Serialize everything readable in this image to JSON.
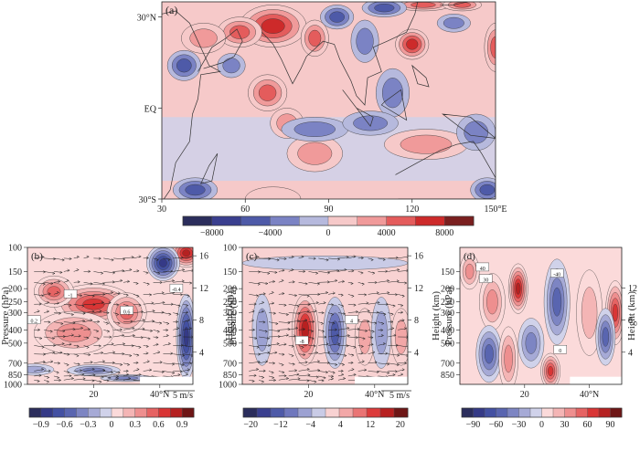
{
  "figure": {
    "chart_data": [
      {
        "id": "a",
        "type": "heatmap",
        "panel_label": "(a)",
        "xlim": [
          30,
          150
        ],
        "ylim": [
          -30,
          35
        ],
        "x_ticks": [
          30,
          60,
          90,
          120
        ],
        "x_tick_labels": [
          "30",
          "60",
          "90",
          "120"
        ],
        "x_end_label": "150°E",
        "y_ticks": [
          30,
          0,
          -30
        ],
        "y_tick_labels": [
          "30°N",
          "EQ",
          "30°S"
        ],
        "colorbar": {
          "bounds": [
            -10000,
            -8000,
            -6000,
            -4000,
            -2000,
            0,
            2000,
            4000,
            6000,
            8000,
            10000
          ],
          "tick_values": [
            -8000,
            -4000,
            0,
            4000,
            8000
          ],
          "tick_labels": [
            "−8000",
            "−4000",
            "0",
            "4000",
            "8000"
          ]
        },
        "features": [
          {
            "lon": 70,
            "lat": 27,
            "value": 7000,
            "rlon": 12,
            "rlat": 7
          },
          {
            "lon": 85,
            "lat": 23,
            "value": 6000,
            "rlon": 5,
            "rlat": 6
          },
          {
            "lon": 58,
            "lat": 25,
            "value": 5000,
            "rlon": 8,
            "rlat": 5
          },
          {
            "lon": 120,
            "lat": 21,
            "value": 6500,
            "rlon": 6,
            "rlat": 5
          },
          {
            "lon": 124,
            "lat": 34,
            "value": 5500,
            "rlon": 10,
            "rlat": 2
          },
          {
            "lon": 138,
            "lat": 34,
            "value": 6000,
            "rlon": 7,
            "rlat": 2
          },
          {
            "lon": 150,
            "lat": 20,
            "value": 5000,
            "rlon": 4,
            "rlat": 8
          },
          {
            "lon": 68,
            "lat": 5,
            "value": 4500,
            "rlon": 7,
            "rlat": 6
          },
          {
            "lon": 75,
            "lat": -5,
            "value": 3500,
            "rlon": 6,
            "rlat": 5
          },
          {
            "lon": 85,
            "lat": -15,
            "value": 3000,
            "rlon": 10,
            "rlat": 6
          },
          {
            "lon": 45,
            "lat": 23,
            "value": 2500,
            "rlon": 8,
            "rlat": 5
          },
          {
            "lon": 125,
            "lat": -12,
            "value": 2500,
            "rlon": 15,
            "rlat": 5
          },
          {
            "lon": 70,
            "lat": -30,
            "value": 2000,
            "rlon": 10,
            "rlat": 4
          },
          {
            "lon": 110,
            "lat": 33,
            "value": -4500,
            "rlon": 8,
            "rlat": 3
          },
          {
            "lon": 93,
            "lat": 30,
            "value": -5000,
            "rlon": 6,
            "rlat": 4
          },
          {
            "lon": 103,
            "lat": 22,
            "value": -3500,
            "rlon": 5,
            "rlat": 7
          },
          {
            "lon": 38,
            "lat": 14,
            "value": -5500,
            "rlon": 6,
            "rlat": 5
          },
          {
            "lon": 55,
            "lat": 14,
            "value": -3000,
            "rlon": 5,
            "rlat": 4
          },
          {
            "lon": 113,
            "lat": 5,
            "value": -4000,
            "rlon": 6,
            "rlat": 8
          },
          {
            "lon": 85,
            "lat": -7,
            "value": -3500,
            "rlon": 12,
            "rlat": 4
          },
          {
            "lon": 105,
            "lat": -5,
            "value": -3500,
            "rlon": 10,
            "rlat": 4
          },
          {
            "lon": 143,
            "lat": -8,
            "value": -3000,
            "rlon": 7,
            "rlat": 6
          },
          {
            "lon": 42,
            "lat": -27,
            "value": -5000,
            "rlon": 8,
            "rlat": 4
          },
          {
            "lon": 147,
            "lat": -27,
            "value": -4500,
            "rlon": 6,
            "rlat": 4
          },
          {
            "lon": 135,
            "lat": 28,
            "value": -3000,
            "rlon": 6,
            "rlat": 3
          }
        ]
      },
      {
        "id": "b",
        "type": "heatmap",
        "panel_label": "(b)",
        "x_unit_lat": true,
        "xlim": [
          0,
          50
        ],
        "x_ticks": [
          20,
          40
        ],
        "x_tick_labels": [
          "20",
          "40°N"
        ],
        "pressure_ticks": [
          100,
          150,
          200,
          250,
          300,
          400,
          500,
          700,
          850,
          1000
        ],
        "pressure_labels": [
          "100",
          "150",
          "200",
          "250",
          "300",
          "400",
          "500",
          "700",
          "850",
          "1000"
        ],
        "y_label": "Pressure (hPa)",
        "right_axis_label": "Height (km)",
        "height_ticks": [
          16,
          12,
          8,
          4
        ],
        "height_tick_labels": [
          "16",
          "12",
          "8",
          "4"
        ],
        "vector_key": "5 m/s",
        "colorbar": {
          "bounds": [
            -1.05,
            -0.9,
            -0.75,
            -0.6,
            -0.45,
            -0.3,
            -0.15,
            0,
            0.15,
            0.3,
            0.45,
            0.6,
            0.75,
            0.9,
            1.05
          ],
          "tick_values": [
            -0.9,
            -0.6,
            -0.3,
            0,
            0.3,
            0.6,
            0.9
          ],
          "tick_labels": [
            "−0.9",
            "−0.6",
            "−0.3",
            "0",
            "0.3",
            "0.6",
            "0.9"
          ]
        },
        "features": [
          {
            "lat": 20,
            "p": 260,
            "value": 0.7,
            "rlat": 12,
            "rp": 0.28
          },
          {
            "lat": 30,
            "p": 300,
            "value": 0.6,
            "rlat": 6,
            "rp": 0.28
          },
          {
            "lat": 8,
            "p": 210,
            "value": 0.55,
            "rlat": 6,
            "rp": 0.22
          },
          {
            "lat": 14,
            "p": 420,
            "value": 0.35,
            "rlat": 12,
            "rp": 0.3
          },
          {
            "lat": 48,
            "p": 110,
            "value": 0.8,
            "rlat": 5,
            "rp": 0.2
          },
          {
            "lat": 41,
            "p": 130,
            "value": -0.8,
            "rlat": 5,
            "rp": 0.25
          },
          {
            "lat": 48,
            "p": 450,
            "value": -0.9,
            "rlat": 3,
            "rp": 0.6
          },
          {
            "lat": 20,
            "p": 790,
            "value": -0.45,
            "rlat": 8,
            "rp": 0.08
          },
          {
            "lat": 2,
            "p": 780,
            "value": -0.3,
            "rlat": 6,
            "rp": 0.08
          },
          {
            "lat": 30,
            "p": 900,
            "value": -0.35,
            "rlat": 8,
            "rp": 0.05
          }
        ]
      },
      {
        "id": "c",
        "type": "heatmap",
        "panel_label": "(c)",
        "xlim": [
          0,
          50
        ],
        "x_ticks": [
          20,
          40
        ],
        "x_tick_labels": [
          "20",
          "40°N"
        ],
        "pressure_ticks": [
          100,
          150,
          200,
          250,
          300,
          400,
          500,
          700,
          850,
          1000
        ],
        "pressure_labels": [
          "100",
          "150",
          "200",
          "250",
          "300",
          "400",
          "500",
          "700",
          "850",
          "1000"
        ],
        "y_label": "Pressure (hPa)",
        "right_axis_label": "Height (km)",
        "height_ticks": [
          16,
          12,
          8,
          4
        ],
        "height_tick_labels": [
          "16",
          "12",
          "8",
          "4"
        ],
        "vector_key": "5 m/s",
        "colorbar": {
          "bounds": [
            -22,
            -20,
            -16,
            -12,
            -8,
            -4,
            0,
            4,
            8,
            12,
            16,
            20,
            22
          ],
          "tick_values": [
            -20,
            -12,
            -4,
            4,
            12,
            20
          ],
          "tick_labels": [
            "−20",
            "−12",
            "−4",
            "4",
            "12",
            "20"
          ]
        },
        "features": [
          {
            "lat": 19,
            "p": 400,
            "value": 18,
            "rlat": 4,
            "rp": 0.5
          },
          {
            "lat": 28,
            "p": 420,
            "value": -13,
            "rlat": 3.5,
            "rp": 0.5
          },
          {
            "lat": 6,
            "p": 400,
            "value": -8,
            "rlat": 3,
            "rp": 0.5
          },
          {
            "lat": 37,
            "p": 450,
            "value": 5,
            "rlat": 3,
            "rp": 0.4
          },
          {
            "lat": 42,
            "p": 420,
            "value": -5,
            "rlat": 3,
            "rp": 0.5
          },
          {
            "lat": 48,
            "p": 450,
            "value": 6,
            "rlat": 3,
            "rp": 0.4
          },
          {
            "lat": 25,
            "p": 130,
            "value": -4,
            "rlat": 25,
            "rp": 0.1
          }
        ]
      },
      {
        "id": "d",
        "type": "heatmap",
        "panel_label": "(d)",
        "xlim": [
          0,
          50
        ],
        "x_ticks": [
          20,
          40
        ],
        "x_tick_labels": [
          "20",
          "40°N"
        ],
        "pressure_ticks": [
          150,
          200,
          250,
          300,
          400,
          500,
          700,
          850
        ],
        "pressure_labels": [
          "150",
          "200",
          "250",
          "300",
          "400",
          "500",
          "700",
          "850"
        ],
        "y_label": "Pressure (hPa)",
        "right_axis_label": "Height (km)",
        "height_ticks": [
          12,
          8,
          4
        ],
        "height_tick_labels": [
          "12",
          "8",
          "4"
        ],
        "colorbar": {
          "bounds": [
            -105,
            -90,
            -75,
            -60,
            -45,
            -30,
            -15,
            0,
            15,
            30,
            45,
            60,
            75,
            90,
            105
          ],
          "tick_values": [
            -90,
            -60,
            -30,
            0,
            30,
            60,
            90
          ],
          "tick_labels": [
            "−90",
            "−60",
            "−30",
            "0",
            "30",
            "60",
            "90"
          ]
        },
        "features": [
          {
            "lat": 18,
            "p": 200,
            "value": 85,
            "rlat": 3,
            "rp": 0.35
          },
          {
            "lat": 10,
            "p": 250,
            "value": 45,
            "rlat": 4,
            "rp": 0.4
          },
          {
            "lat": 3,
            "p": 150,
            "value": 40,
            "rlat": 3,
            "rp": 0.25
          },
          {
            "lat": 30,
            "p": 250,
            "value": -60,
            "rlat": 4,
            "rp": 0.6
          },
          {
            "lat": 22,
            "p": 500,
            "value": -40,
            "rlat": 4,
            "rp": 0.35
          },
          {
            "lat": 9,
            "p": 600,
            "value": -55,
            "rlat": 4,
            "rp": 0.4
          },
          {
            "lat": 15,
            "p": 650,
            "value": 40,
            "rlat": 3,
            "rp": 0.45
          },
          {
            "lat": 28,
            "p": 800,
            "value": 70,
            "rlat": 3,
            "rp": 0.25
          },
          {
            "lat": 40,
            "p": 300,
            "value": 30,
            "rlat": 4,
            "rp": 0.6
          },
          {
            "lat": 48,
            "p": 300,
            "value": 70,
            "rlat": 3,
            "rp": 0.45
          },
          {
            "lat": 45,
            "p": 450,
            "value": -50,
            "rlat": 3,
            "rp": 0.4
          }
        ]
      }
    ],
    "contour_labels": [
      {
        "panel": "b",
        "text": "-1",
        "lat": 13,
        "p": 220
      },
      {
        "panel": "b",
        "text": "0.6",
        "lat": 30,
        "p": 290
      },
      {
        "panel": "b",
        "text": "0.2",
        "lat": 2,
        "p": 340
      },
      {
        "panel": "b",
        "text": "-0.4",
        "lat": 45,
        "p": 200
      },
      {
        "panel": "c",
        "text": "4",
        "lat": 33,
        "p": 340
      },
      {
        "panel": "c",
        "text": "-8",
        "lat": 18,
        "p": 480
      },
      {
        "panel": "d",
        "text": "40",
        "lat": 7,
        "p": 140
      },
      {
        "panel": "d",
        "text": "-40",
        "lat": 30,
        "p": 155
      },
      {
        "panel": "d",
        "text": "30",
        "lat": 8,
        "p": 170
      },
      {
        "panel": "d",
        "text": "0",
        "lat": 31,
        "p": 560
      }
    ]
  }
}
